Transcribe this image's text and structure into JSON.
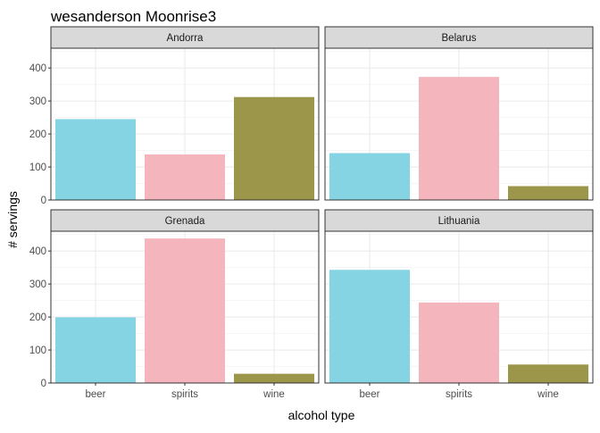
{
  "chart_data": {
    "type": "bar",
    "title": "wesanderson Moonrise3",
    "xlabel": "alcohol type",
    "ylabel": "# servings",
    "categories": [
      "beer",
      "spirits",
      "wine"
    ],
    "colors": [
      "#85D4E3",
      "#F4B5BD",
      "#9C964A"
    ],
    "ylim": [
      0,
      460
    ],
    "yticks": [
      0,
      100,
      200,
      300,
      400
    ],
    "grid": true,
    "legend": "none",
    "layout": "facet 2x2",
    "panels": [
      {
        "name": "Andorra",
        "values": [
          245,
          138,
          312
        ]
      },
      {
        "name": "Belarus",
        "values": [
          142,
          373,
          42
        ]
      },
      {
        "name": "Grenada",
        "values": [
          199,
          438,
          28
        ]
      },
      {
        "name": "Lithuania",
        "values": [
          343,
          244,
          56
        ]
      }
    ]
  }
}
